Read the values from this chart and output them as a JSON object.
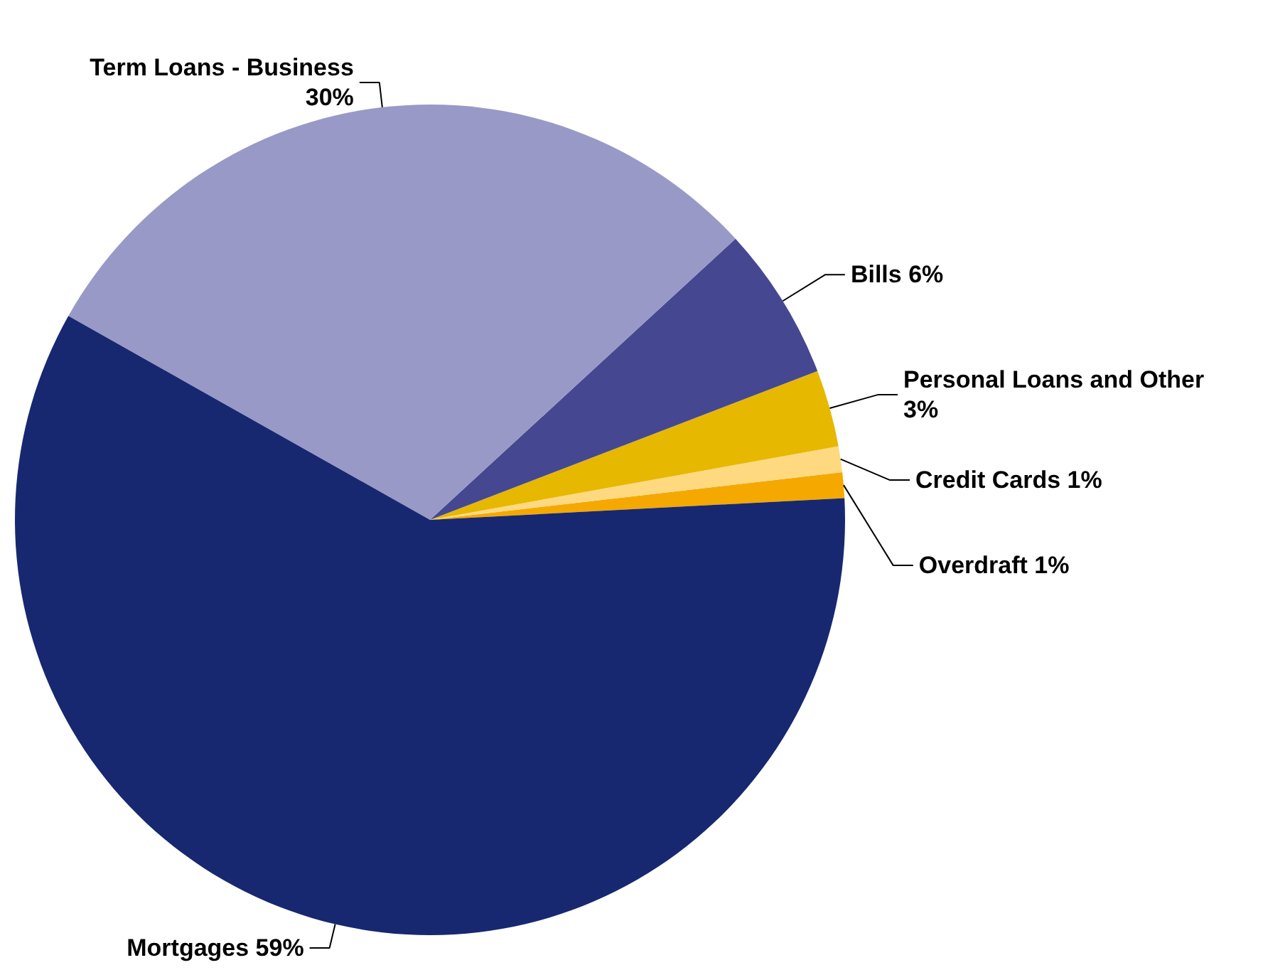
{
  "chart_data": {
    "type": "pie",
    "categories": [
      "Overdraft",
      "Credit Cards",
      "Personal Loans and Other",
      "Bills",
      "Term Loans - Business",
      "Mortgages"
    ],
    "values": [
      1,
      1,
      3,
      6,
      30,
      59
    ],
    "value_labels": [
      "1%",
      "1%",
      "3%",
      "6%",
      "30%",
      "59%"
    ],
    "colors": [
      "#f5a800",
      "#ffd980",
      "#e6b800",
      "#454890",
      "#9999c8",
      "#172870"
    ]
  }
}
